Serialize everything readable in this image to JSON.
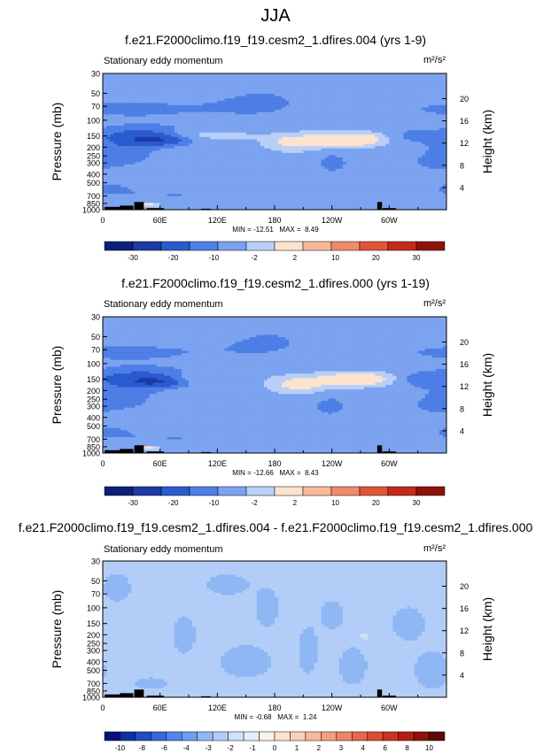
{
  "page_title": "JJA",
  "colors": {
    "cb12": [
      "#0c1f7a",
      "#1d3aa6",
      "#2a5bd0",
      "#4d7fe6",
      "#7ca3f0",
      "#b8cff7",
      "#fde2cf",
      "#f8b89a",
      "#ef8a6a",
      "#df5537",
      "#c42a1a",
      "#8e1208"
    ],
    "cb22": [
      "#05117a",
      "#102fa3",
      "#1f4ec5",
      "#3469db",
      "#4f86e8",
      "#6d9ff0",
      "#8fb7f4",
      "#b2cdf7",
      "#cfe0fa",
      "#e3eefc",
      "#fdf0e6",
      "#fde2cf",
      "#fbcfb7",
      "#f8b89a",
      "#f29f80",
      "#ee8466",
      "#e6684c",
      "#dc4b32",
      "#c93320",
      "#b21f14",
      "#8e1208",
      "#5e0704"
    ]
  },
  "chart_data": [
    {
      "id": "panel1",
      "type": "heatmap",
      "title": "f.e21.F2000climo.f19_f19.cesm2_1.dfires.004 (yrs 1-9)",
      "subtitle_left": "Stationary eddy momentum",
      "units": "m²/s²",
      "ylabel": "Pressure (mb)",
      "ylabel_right": "Height (km)",
      "pressure_ticks": [
        30,
        50,
        70,
        100,
        150,
        200,
        250,
        300,
        400,
        500,
        700,
        850,
        1000
      ],
      "pressure_range": [
        30,
        1000
      ],
      "height_ticks": [
        4,
        8,
        12,
        16,
        20
      ],
      "x_ticks": [
        "0",
        "60E",
        "120E",
        "180",
        "120W",
        "60W"
      ],
      "x_tick_lon": [
        0,
        60,
        120,
        180,
        240,
        300
      ],
      "lon_range": [
        0,
        360
      ],
      "stats": "MIN = -12.51   MAX =  8.49",
      "min": -12.51,
      "max": 8.49,
      "colorbar": "cb12",
      "colorbar_labels": [
        "-30",
        "-20",
        "-10",
        "-2",
        "2",
        "10",
        "20",
        "30"
      ],
      "colorbar_levels": [
        -40,
        -30,
        -25,
        -20,
        -15,
        -10,
        -5,
        -2,
        2,
        5,
        10,
        15,
        20,
        25,
        30
      ],
      "background_value": 0.5,
      "features": [
        {
          "lon": 45,
          "p": 150,
          "wlon": 40,
          "wp": 0.18,
          "v": -7
        },
        {
          "lon": 55,
          "p": 165,
          "wlon": 22,
          "wp": 0.1,
          "v": -6
        },
        {
          "lon": 25,
          "p": 230,
          "wlon": 25,
          "wp": 0.22,
          "v": -2.5
        },
        {
          "lon": 30,
          "p": 75,
          "wlon": 90,
          "wp": 0.25,
          "v": -3
        },
        {
          "lon": 170,
          "p": 60,
          "wlon": 40,
          "wp": 0.35,
          "v": -2.5
        },
        {
          "lon": 95,
          "p": 145,
          "wlon": 28,
          "wp": 0.1,
          "v": 4
        },
        {
          "lon": 130,
          "p": 150,
          "wlon": 20,
          "wp": 0.08,
          "v": 2.5
        },
        {
          "lon": 200,
          "p": 175,
          "wlon": 22,
          "wp": 0.16,
          "v": 6
        },
        {
          "lon": 262,
          "p": 165,
          "wlon": 28,
          "wp": 0.13,
          "v": 9
        },
        {
          "lon": 240,
          "p": 300,
          "wlon": 12,
          "wp": 0.18,
          "v": -4
        },
        {
          "lon": 320,
          "p": 150,
          "wlon": 16,
          "wp": 0.12,
          "v": -3
        },
        {
          "lon": 345,
          "p": 300,
          "wlon": 45,
          "wp": 0.4,
          "v": -2.5
        },
        {
          "lon": 10,
          "p": 600,
          "wlon": 25,
          "wp": 0.15,
          "v": -2.5
        },
        {
          "lon": 30,
          "p": 880,
          "wlon": 8,
          "wp": 0.05,
          "v": -4
        },
        {
          "lon": 42,
          "p": 880,
          "wlon": 12,
          "wp": 0.05,
          "v": 8
        },
        {
          "lon": 80,
          "p": 700,
          "wlon": 35,
          "wp": 0.12,
          "v": -2.5
        },
        {
          "lon": 300,
          "p": 900,
          "wlon": 60,
          "wp": 0.1,
          "v": -2.5
        }
      ],
      "topography": [
        {
          "lon": 12,
          "w": 20,
          "p": 930
        },
        {
          "lon": 25,
          "w": 14,
          "p": 900
        },
        {
          "lon": 38,
          "w": 10,
          "p": 820
        },
        {
          "lon": 55,
          "w": 18,
          "p": 960
        },
        {
          "lon": 108,
          "w": 10,
          "p": 975
        },
        {
          "lon": 290,
          "w": 5,
          "p": 820
        },
        {
          "lon": 300,
          "w": 14,
          "p": 960
        }
      ]
    },
    {
      "id": "panel2",
      "type": "heatmap",
      "title": "f.e21.F2000climo.f19_f19.cesm2_1.dfires.000 (yrs 1-19)",
      "subtitle_left": "Stationary eddy momentum",
      "units": "m²/s²",
      "ylabel": "Pressure (mb)",
      "ylabel_right": "Height (km)",
      "pressure_ticks": [
        30,
        50,
        70,
        100,
        150,
        200,
        250,
        300,
        400,
        500,
        700,
        850,
        1000
      ],
      "pressure_range": [
        30,
        1000
      ],
      "height_ticks": [
        4,
        8,
        12,
        16,
        20
      ],
      "x_ticks": [
        "0",
        "60E",
        "120E",
        "180",
        "120W",
        "60W"
      ],
      "x_tick_lon": [
        0,
        60,
        120,
        180,
        240,
        300
      ],
      "lon_range": [
        0,
        360
      ],
      "stats": "MIN = -12.66   MAX =  8.43",
      "min": -12.66,
      "max": 8.43,
      "colorbar": "cb12",
      "colorbar_labels": [
        "-30",
        "-20",
        "-10",
        "-2",
        "2",
        "10",
        "20",
        "30"
      ],
      "colorbar_levels": [
        -40,
        -30,
        -25,
        -20,
        -15,
        -10,
        -5,
        -2,
        2,
        5,
        10,
        15,
        20,
        25,
        30
      ],
      "background_value": 0.5,
      "features": [
        {
          "lon": 42,
          "p": 145,
          "wlon": 40,
          "wp": 0.18,
          "v": -7
        },
        {
          "lon": 55,
          "p": 160,
          "wlon": 20,
          "wp": 0.1,
          "v": -6
        },
        {
          "lon": 25,
          "p": 230,
          "wlon": 25,
          "wp": 0.22,
          "v": -2.5
        },
        {
          "lon": 25,
          "p": 75,
          "wlon": 90,
          "wp": 0.25,
          "v": -3
        },
        {
          "lon": 175,
          "p": 55,
          "wlon": 40,
          "wp": 0.35,
          "v": -2.5
        },
        {
          "lon": 100,
          "p": 145,
          "wlon": 32,
          "wp": 0.1,
          "v": 3
        },
        {
          "lon": 205,
          "p": 170,
          "wlon": 22,
          "wp": 0.16,
          "v": 6
        },
        {
          "lon": 268,
          "p": 150,
          "wlon": 28,
          "wp": 0.13,
          "v": 9
        },
        {
          "lon": 238,
          "p": 300,
          "wlon": 12,
          "wp": 0.18,
          "v": -4
        },
        {
          "lon": 330,
          "p": 150,
          "wlon": 16,
          "wp": 0.12,
          "v": -3.5
        },
        {
          "lon": 345,
          "p": 300,
          "wlon": 45,
          "wp": 0.4,
          "v": -2.5
        },
        {
          "lon": 10,
          "p": 600,
          "wlon": 25,
          "wp": 0.15,
          "v": -2.5
        },
        {
          "lon": 30,
          "p": 880,
          "wlon": 8,
          "wp": 0.05,
          "v": -4
        },
        {
          "lon": 42,
          "p": 880,
          "wlon": 12,
          "wp": 0.05,
          "v": 8
        },
        {
          "lon": 80,
          "p": 700,
          "wlon": 35,
          "wp": 0.12,
          "v": -2.5
        },
        {
          "lon": 300,
          "p": 900,
          "wlon": 60,
          "wp": 0.1,
          "v": -2.5
        }
      ],
      "topography": [
        {
          "lon": 12,
          "w": 20,
          "p": 930
        },
        {
          "lon": 25,
          "w": 14,
          "p": 900
        },
        {
          "lon": 38,
          "w": 10,
          "p": 820
        },
        {
          "lon": 55,
          "w": 18,
          "p": 960
        },
        {
          "lon": 108,
          "w": 10,
          "p": 975
        },
        {
          "lon": 290,
          "w": 5,
          "p": 820
        },
        {
          "lon": 300,
          "w": 14,
          "p": 960
        }
      ]
    },
    {
      "id": "panel3",
      "type": "heatmap",
      "title": "f.e21.F2000climo.f19_f19.cesm2_1.dfires.004 - f.e21.F2000climo.f19_f19.cesm2_1.dfires.000",
      "subtitle_left": "Stationary eddy momentum",
      "units": "m²/s²",
      "ylabel": "Pressure (mb)",
      "ylabel_right": "Height (km)",
      "pressure_ticks": [
        30,
        50,
        70,
        100,
        150,
        200,
        250,
        300,
        400,
        500,
        700,
        850,
        1000
      ],
      "pressure_range": [
        30,
        1000
      ],
      "height_ticks": [
        4,
        8,
        12,
        16,
        20
      ],
      "x_ticks": [
        "0",
        "60E",
        "120E",
        "180",
        "120W",
        "60W"
      ],
      "x_tick_lon": [
        0,
        60,
        120,
        180,
        240,
        300
      ],
      "lon_range": [
        0,
        360
      ],
      "stats": "MIN = -0.68   MAX =  1.24",
      "min": -0.68,
      "max": 1.24,
      "colorbar": "cb22",
      "colorbar_labels": [
        "-10",
        "-8",
        "-6",
        "-4",
        "-3",
        "-2",
        "-1",
        "0",
        "1",
        "2",
        "3",
        "4",
        "6",
        "8",
        "10"
      ],
      "colorbar_levels": [
        -12,
        -10,
        -9,
        -8,
        -7,
        -6,
        -5,
        -4,
        -3.5,
        -3,
        -2.5,
        -2,
        -1.5,
        -1,
        -0.5,
        0,
        0.5,
        1,
        1.5,
        2,
        2.5,
        3,
        3.5,
        4,
        5,
        6,
        7,
        8,
        9,
        10
      ],
      "background_value": 0.25,
      "features": [
        {
          "lon": 15,
          "p": 60,
          "wlon": 12,
          "wp": 0.3,
          "v": -0.5
        },
        {
          "lon": 85,
          "p": 200,
          "wlon": 10,
          "wp": 0.4,
          "v": -0.5
        },
        {
          "lon": 130,
          "p": 55,
          "wlon": 18,
          "wp": 0.22,
          "v": -0.5
        },
        {
          "lon": 150,
          "p": 400,
          "wlon": 22,
          "wp": 0.35,
          "v": -0.5
        },
        {
          "lon": 172,
          "p": 100,
          "wlon": 10,
          "wp": 0.4,
          "v": -0.5
        },
        {
          "lon": 215,
          "p": 300,
          "wlon": 8,
          "wp": 0.5,
          "v": -0.5
        },
        {
          "lon": 240,
          "p": 120,
          "wlon": 10,
          "wp": 0.3,
          "v": -0.5
        },
        {
          "lon": 262,
          "p": 450,
          "wlon": 12,
          "wp": 0.4,
          "v": -0.5
        },
        {
          "lon": 320,
          "p": 150,
          "wlon": 14,
          "wp": 0.35,
          "v": -0.5
        },
        {
          "lon": 345,
          "p": 500,
          "wlon": 15,
          "wp": 0.4,
          "v": -0.5
        },
        {
          "lon": 50,
          "p": 700,
          "wlon": 14,
          "wp": 0.12,
          "v": -0.5
        },
        {
          "lon": 275,
          "p": 210,
          "wlon": 3,
          "wp": 0.06,
          "v": 0.8
        }
      ],
      "topography": [
        {
          "lon": 12,
          "w": 20,
          "p": 930
        },
        {
          "lon": 25,
          "w": 14,
          "p": 900
        },
        {
          "lon": 38,
          "w": 10,
          "p": 820
        },
        {
          "lon": 55,
          "w": 18,
          "p": 960
        },
        {
          "lon": 108,
          "w": 10,
          "p": 975
        },
        {
          "lon": 290,
          "w": 5,
          "p": 820
        },
        {
          "lon": 300,
          "w": 14,
          "p": 960
        }
      ]
    }
  ]
}
